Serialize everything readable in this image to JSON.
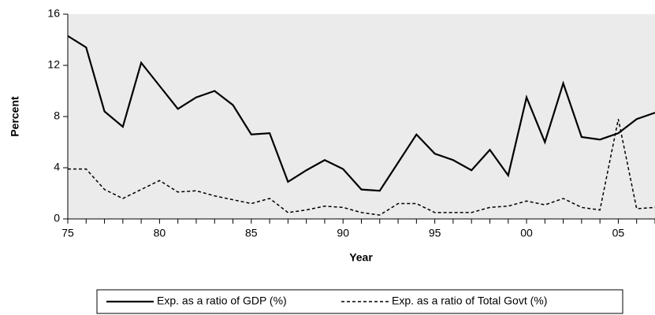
{
  "chart_data": {
    "type": "line",
    "xlabel": "Year",
    "ylabel": "Percent",
    "categories": [
      "75",
      null,
      null,
      null,
      null,
      "80",
      null,
      null,
      null,
      null,
      "85",
      null,
      null,
      null,
      null,
      "90",
      null,
      null,
      null,
      null,
      "95",
      null,
      null,
      null,
      null,
      "00",
      null,
      null,
      null,
      null,
      "05",
      null,
      null
    ],
    "series": [
      {
        "name": "Exp. as a ratio of GDP (%)",
        "color": "#000000",
        "line_style": "solid",
        "values": [
          14.3,
          13.4,
          8.4,
          7.2,
          12.2,
          10.4,
          8.6,
          9.5,
          10.0,
          8.9,
          6.6,
          6.7,
          2.9,
          3.8,
          4.6,
          3.9,
          2.3,
          2.2,
          4.4,
          6.6,
          5.1,
          4.6,
          3.8,
          5.4,
          3.4,
          9.5,
          6.0,
          10.6,
          6.4,
          6.2,
          6.7,
          7.8,
          8.3
        ]
      },
      {
        "name": "Exp. as a ratio of Total Govt (%)",
        "color": "#000000",
        "line_style": "dashed",
        "values": [
          3.9,
          3.9,
          2.3,
          1.6,
          2.3,
          3.0,
          2.1,
          2.2,
          1.8,
          1.5,
          1.2,
          1.6,
          0.5,
          0.7,
          1.0,
          0.9,
          0.5,
          0.3,
          1.2,
          1.2,
          0.5,
          0.5,
          0.5,
          0.9,
          1.0,
          1.4,
          1.1,
          1.6,
          0.9,
          0.7,
          7.8,
          0.8,
          0.9
        ]
      }
    ],
    "ylim": [
      0,
      16
    ],
    "yticks": [
      0,
      4,
      8,
      12,
      16
    ],
    "grid": false,
    "legend": "bottom"
  }
}
